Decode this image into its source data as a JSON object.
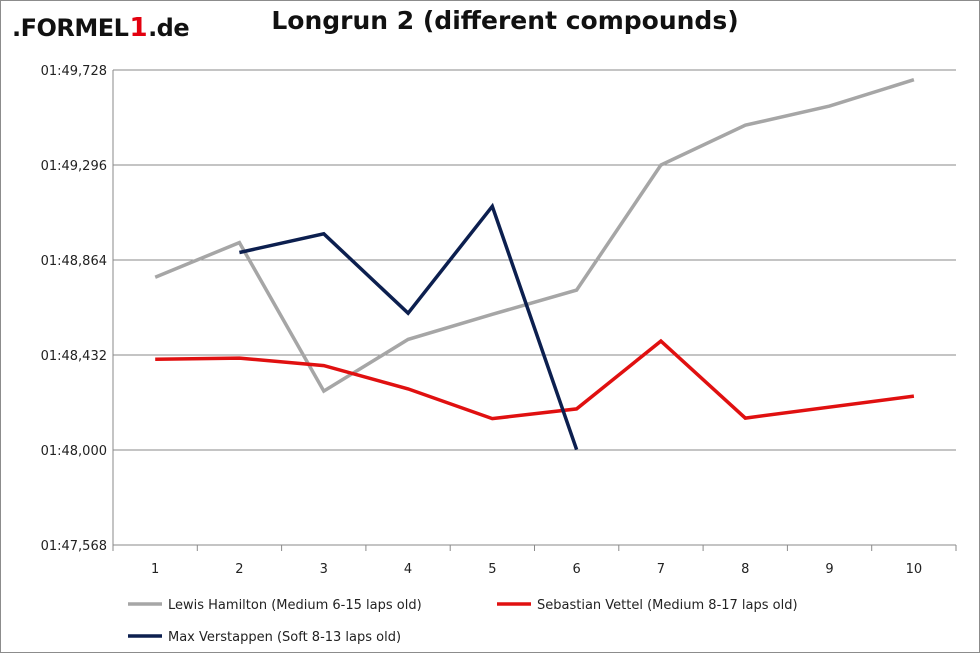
{
  "header": {
    "logo_text": ".FORMEL1.de",
    "title": "Longrun 2 (different compounds)"
  },
  "chart_data": {
    "type": "line",
    "title": "Longrun 2 (different compounds)",
    "xlabel": "",
    "ylabel": "",
    "x": [
      1,
      2,
      3,
      4,
      5,
      6,
      7,
      8,
      9,
      10
    ],
    "x_tick_labels": [
      "1",
      "2",
      "3",
      "4",
      "5",
      "6",
      "7",
      "8",
      "9",
      "10"
    ],
    "y_tick_labels": [
      "01:47,568",
      "01:48,000",
      "01:48,432",
      "01:48,864",
      "01:49,296",
      "01:49,728"
    ],
    "y_unit": "seconds past 01:47,568 (lap time mm:ss,ms)",
    "y_ticks_seconds": [
      107.568,
      108.0,
      108.432,
      108.864,
      109.296,
      109.728
    ],
    "ylim": [
      107.568,
      109.728
    ],
    "grid": "horizontal",
    "legend_position": "bottom",
    "series": [
      {
        "name": "Lewis Hamilton (Medium 6-15 laps old)",
        "color": "#a6a6a6",
        "values": [
          108.786,
          108.943,
          108.268,
          108.503,
          108.617,
          108.727,
          109.296,
          109.477,
          109.564,
          109.684
        ]
      },
      {
        "name": "Sebastian Vettel (Medium 8-17 laps old)",
        "color": "#e01010",
        "values": [
          108.413,
          108.418,
          108.384,
          108.278,
          108.143,
          108.187,
          108.495,
          108.145,
          null,
          108.245
        ]
      },
      {
        "name": "Max Verstappen (Soft 8-13 laps old)",
        "color": "#0c1f4f",
        "values": [
          null,
          108.898,
          108.983,
          108.622,
          109.108,
          108.002,
          null,
          null,
          null,
          null
        ]
      }
    ]
  }
}
